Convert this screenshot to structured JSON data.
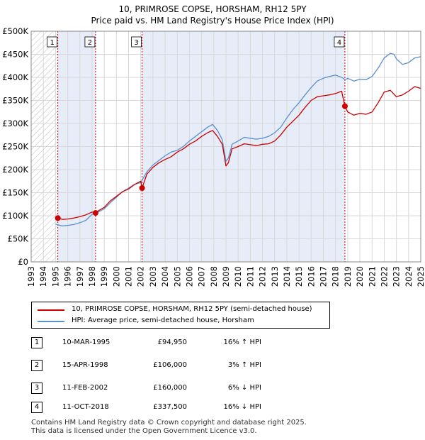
{
  "header": {
    "title": "10, PRIMROSE COPSE, HORSHAM, RH12 5PY",
    "subtitle": "Price paid vs. HM Land Registry's House Price Index (HPI)"
  },
  "colors": {
    "property": "#cc0000",
    "hpi": "#5b8fd0",
    "shade": "#dde6f6",
    "marker_line": "#cc0000"
  },
  "legend": {
    "property_label": "10, PRIMROSE COPSE, HORSHAM, RH12 5PY (semi-detached house)",
    "hpi_label": "HPI: Average price, semi-detached house, Horsham"
  },
  "transactions": [
    {
      "num": "1",
      "date": "10-MAR-1995",
      "price": "£94,950",
      "hpi_rel": "16% ↑ HPI"
    },
    {
      "num": "2",
      "date": "15-APR-1998",
      "price": "£106,000",
      "hpi_rel": "3% ↑ HPI"
    },
    {
      "num": "3",
      "date": "11-FEB-2002",
      "price": "£160,000",
      "hpi_rel": "6% ↓ HPI"
    },
    {
      "num": "4",
      "date": "11-OCT-2018",
      "price": "£337,500",
      "hpi_rel": "16% ↓ HPI"
    }
  ],
  "footer": {
    "line1": "Contains HM Land Registry data © Crown copyright and database right 2025.",
    "line2": "This data is licensed under the Open Government Licence v3.0."
  },
  "chart_data": {
    "type": "line",
    "title": "10, PRIMROSE COPSE, HORSHAM, RH12 5PY",
    "subtitle": "Price paid vs. HM Land Registry's House Price Index (HPI)",
    "xlabel": "",
    "ylabel": "",
    "xlim": [
      1993,
      2025
    ],
    "ylim": [
      0,
      500000
    ],
    "grid": true,
    "legend_position": "below",
    "y_ticks": [
      0,
      50000,
      100000,
      150000,
      200000,
      250000,
      300000,
      350000,
      400000,
      450000,
      500000
    ],
    "y_tick_labels": [
      "£0",
      "£50K",
      "£100K",
      "£150K",
      "£200K",
      "£250K",
      "£300K",
      "£350K",
      "£400K",
      "£450K",
      "£500K"
    ],
    "x_ticks": [
      1993,
      1994,
      1995,
      1996,
      1997,
      1998,
      1999,
      2000,
      2001,
      2002,
      2003,
      2004,
      2005,
      2006,
      2007,
      2008,
      2009,
      2010,
      2011,
      2012,
      2013,
      2014,
      2015,
      2016,
      2017,
      2018,
      2019,
      2020,
      2021,
      2022,
      2023,
      2024,
      2025
    ],
    "series": [
      {
        "name": "10, PRIMROSE COPSE, HORSHAM, RH12 5PY (semi-detached house)",
        "color": "#cc0000",
        "x": [
          1995.19,
          1995.6,
          1996.0,
          1996.5,
          1997.0,
          1997.5,
          1998.0,
          1998.29,
          1998.6,
          1999.0,
          1999.5,
          2000.0,
          2000.5,
          2001.0,
          2001.5,
          2002.0,
          2002.11,
          2002.5,
          2003.0,
          2003.5,
          2004.0,
          2004.5,
          2005.0,
          2005.5,
          2006.0,
          2006.5,
          2007.0,
          2007.5,
          2007.9,
          2008.3,
          2008.7,
          2009.0,
          2009.2,
          2009.5,
          2010.0,
          2010.5,
          2011.0,
          2011.5,
          2012.0,
          2012.5,
          2013.0,
          2013.5,
          2014.0,
          2014.5,
          2015.0,
          2015.5,
          2016.0,
          2016.5,
          2017.0,
          2017.5,
          2018.0,
          2018.5,
          2018.77,
          2019.0,
          2019.5,
          2020.0,
          2020.5,
          2021.0,
          2021.5,
          2022.0,
          2022.5,
          2023.0,
          2023.5,
          2024.0,
          2024.5,
          2025.0
        ],
        "values": [
          94950,
          92000,
          93000,
          95000,
          98000,
          102000,
          108000,
          106000,
          112000,
          118000,
          132000,
          142000,
          152000,
          158000,
          168000,
          175000,
          160000,
          190000,
          205000,
          215000,
          222000,
          228000,
          238000,
          245000,
          255000,
          262000,
          272000,
          280000,
          285000,
          272000,
          255000,
          208000,
          215000,
          245000,
          250000,
          256000,
          254000,
          252000,
          255000,
          256000,
          262000,
          275000,
          292000,
          305000,
          318000,
          335000,
          350000,
          358000,
          360000,
          362000,
          365000,
          370000,
          337500,
          325000,
          318000,
          322000,
          320000,
          325000,
          345000,
          368000,
          372000,
          358000,
          362000,
          370000,
          380000,
          376000
        ]
      },
      {
        "name": "HPI: Average price, semi-detached house, Horsham",
        "color": "#5b8fd0",
        "x": [
          1995.0,
          1995.5,
          1996.0,
          1996.5,
          1997.0,
          1997.5,
          1998.0,
          1998.5,
          1999.0,
          1999.5,
          2000.0,
          2000.5,
          2001.0,
          2001.5,
          2002.0,
          2002.5,
          2003.0,
          2003.5,
          2004.0,
          2004.5,
          2005.0,
          2005.5,
          2006.0,
          2006.5,
          2007.0,
          2007.5,
          2007.9,
          2008.3,
          2008.7,
          2009.0,
          2009.2,
          2009.5,
          2010.0,
          2010.5,
          2011.0,
          2011.5,
          2012.0,
          2012.5,
          2013.0,
          2013.5,
          2014.0,
          2014.5,
          2015.0,
          2015.5,
          2016.0,
          2016.5,
          2017.0,
          2017.5,
          2018.0,
          2018.5,
          2018.8,
          2019.0,
          2019.5,
          2020.0,
          2020.5,
          2021.0,
          2021.5,
          2022.0,
          2022.5,
          2022.8,
          2023.0,
          2023.5,
          2024.0,
          2024.5,
          2025.0
        ],
        "values": [
          82000,
          78000,
          79000,
          81000,
          85000,
          90000,
          103000,
          108000,
          115000,
          128000,
          140000,
          152000,
          160000,
          168000,
          172000,
          195000,
          210000,
          220000,
          230000,
          238000,
          242000,
          250000,
          262000,
          272000,
          282000,
          292000,
          298000,
          285000,
          265000,
          218000,
          225000,
          255000,
          262000,
          270000,
          268000,
          266000,
          268000,
          272000,
          280000,
          292000,
          312000,
          330000,
          345000,
          362000,
          378000,
          392000,
          398000,
          402000,
          405000,
          400000,
          395000,
          398000,
          392000,
          396000,
          395000,
          402000,
          420000,
          442000,
          452000,
          450000,
          440000,
          428000,
          432000,
          442000,
          445000
        ]
      }
    ],
    "sales": [
      {
        "label": "1",
        "x": 1995.19,
        "price": 94950
      },
      {
        "label": "2",
        "x": 1998.29,
        "price": 106000
      },
      {
        "label": "3",
        "x": 2002.11,
        "price": 160000
      },
      {
        "label": "4",
        "x": 2018.77,
        "price": 337500
      }
    ],
    "shaded_ranges": [
      [
        1995.19,
        1998.29
      ],
      [
        2002.11,
        2018.77
      ]
    ],
    "hatched_ranges": [
      [
        1993,
        1995.19
      ]
    ]
  }
}
